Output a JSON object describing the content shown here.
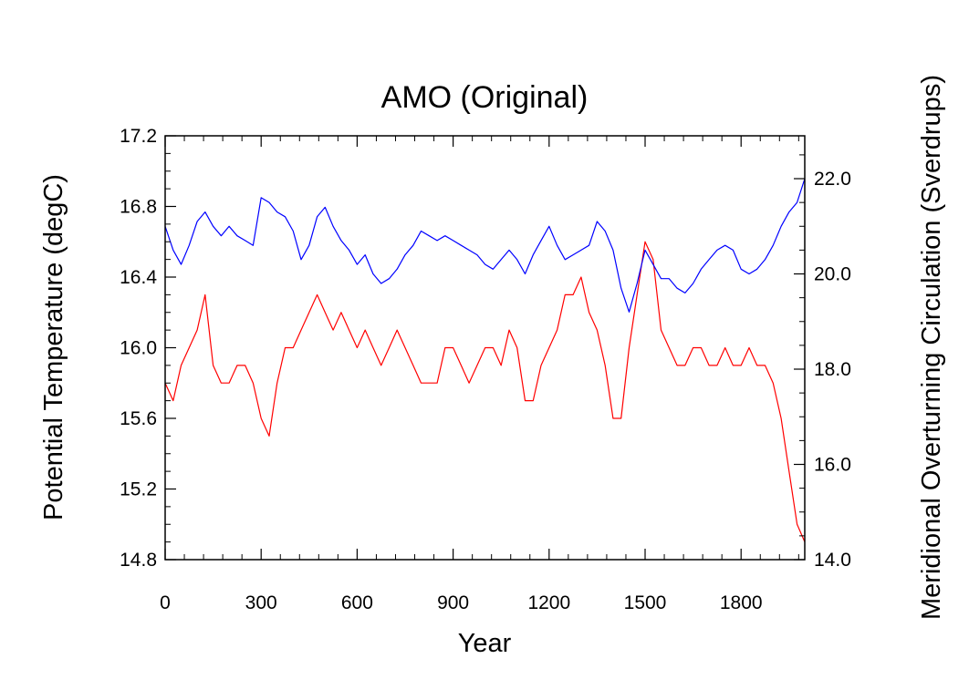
{
  "chart_data": {
    "type": "line",
    "title": "AMO (Original)",
    "xlabel": "Year",
    "ylabel": "Potential Temperature (degC)",
    "y2label": "Meridional Overturning Circulation (Sverdrups)",
    "xlim": [
      0,
      1999
    ],
    "ylim": [
      14.8,
      17.2
    ],
    "y2lim": [
      14.0,
      22.9
    ],
    "xticks": [
      "0",
      "300",
      "600",
      "900",
      "1200",
      "1500",
      "1800"
    ],
    "xtick_values": [
      0,
      300,
      600,
      900,
      1200,
      1500,
      1800
    ],
    "yticks": [
      "14.8",
      "15.2",
      "15.6",
      "16.0",
      "16.4",
      "16.8",
      "17.2"
    ],
    "ytick_values": [
      14.8,
      15.2,
      15.6,
      16.0,
      16.4,
      16.8,
      17.2
    ],
    "y2ticks": [
      "14.0",
      "16.0",
      "18.0",
      "20.0",
      "22.0"
    ],
    "y2tick_values": [
      14.0,
      16.0,
      18.0,
      20.0,
      22.0
    ],
    "legend": "none",
    "series": [
      {
        "name": "Potential Temperature",
        "axis": "left",
        "color": "#ff0000",
        "x": [
          0,
          25,
          50,
          75,
          100,
          125,
          150,
          175,
          200,
          225,
          250,
          275,
          300,
          325,
          350,
          375,
          400,
          425,
          450,
          475,
          500,
          525,
          550,
          575,
          600,
          625,
          650,
          675,
          700,
          725,
          750,
          775,
          800,
          825,
          850,
          875,
          900,
          925,
          950,
          975,
          1000,
          1025,
          1050,
          1075,
          1100,
          1125,
          1150,
          1175,
          1200,
          1225,
          1250,
          1275,
          1300,
          1325,
          1350,
          1375,
          1400,
          1425,
          1450,
          1475,
          1500,
          1525,
          1550,
          1575,
          1600,
          1625,
          1650,
          1675,
          1700,
          1725,
          1750,
          1775,
          1800,
          1825,
          1850,
          1875,
          1900,
          1925,
          1950,
          1975,
          1999
        ],
        "values": [
          15.8,
          15.7,
          15.9,
          16.0,
          16.1,
          16.3,
          15.9,
          15.8,
          15.8,
          15.9,
          15.9,
          15.8,
          15.6,
          15.5,
          15.8,
          16.0,
          16.0,
          16.1,
          16.2,
          16.3,
          16.2,
          16.1,
          16.2,
          16.1,
          16.0,
          16.1,
          16.0,
          15.9,
          16.0,
          16.1,
          16.0,
          15.9,
          15.8,
          15.8,
          15.8,
          16.0,
          16.0,
          15.9,
          15.8,
          15.9,
          16.0,
          16.0,
          15.9,
          16.1,
          16.0,
          15.7,
          15.7,
          15.9,
          16.0,
          16.1,
          16.3,
          16.3,
          16.4,
          16.2,
          16.1,
          15.9,
          15.6,
          15.6,
          16.0,
          16.3,
          16.6,
          16.5,
          16.1,
          16.0,
          15.9,
          15.9,
          16.0,
          16.0,
          15.9,
          15.9,
          16.0,
          15.9,
          15.9,
          16.0,
          15.9,
          15.9,
          15.8,
          15.6,
          15.3,
          15.0,
          14.9
        ]
      },
      {
        "name": "Meridional Overturning Circulation",
        "axis": "right",
        "color": "#0000ff",
        "x": [
          0,
          25,
          50,
          75,
          100,
          125,
          150,
          175,
          200,
          225,
          250,
          275,
          300,
          325,
          350,
          375,
          400,
          425,
          450,
          475,
          500,
          525,
          550,
          575,
          600,
          625,
          650,
          675,
          700,
          725,
          750,
          775,
          800,
          825,
          850,
          875,
          900,
          925,
          950,
          975,
          1000,
          1025,
          1050,
          1075,
          1100,
          1125,
          1150,
          1175,
          1200,
          1225,
          1250,
          1275,
          1300,
          1325,
          1350,
          1375,
          1400,
          1425,
          1450,
          1475,
          1500,
          1525,
          1550,
          1575,
          1600,
          1625,
          1650,
          1675,
          1700,
          1725,
          1750,
          1775,
          1800,
          1825,
          1850,
          1875,
          1900,
          1925,
          1950,
          1975,
          1999
        ],
        "values": [
          21.0,
          20.5,
          20.2,
          20.6,
          21.1,
          21.3,
          21.0,
          20.8,
          21.0,
          20.8,
          20.7,
          20.6,
          21.6,
          21.5,
          21.3,
          21.2,
          20.9,
          20.3,
          20.6,
          21.2,
          21.4,
          21.0,
          20.7,
          20.5,
          20.2,
          20.4,
          20.0,
          19.8,
          19.9,
          20.1,
          20.4,
          20.6,
          20.9,
          20.8,
          20.7,
          20.8,
          20.7,
          20.6,
          20.5,
          20.4,
          20.2,
          20.1,
          20.3,
          20.5,
          20.3,
          20.0,
          20.4,
          20.7,
          21.0,
          20.6,
          20.3,
          20.4,
          20.5,
          20.6,
          21.1,
          20.9,
          20.5,
          19.7,
          19.2,
          19.8,
          20.5,
          20.2,
          19.9,
          19.9,
          19.7,
          19.6,
          19.8,
          20.1,
          20.3,
          20.5,
          20.6,
          20.5,
          20.1,
          20.0,
          20.1,
          20.3,
          20.6,
          21.0,
          21.3,
          21.5,
          22.0
        ]
      }
    ]
  }
}
